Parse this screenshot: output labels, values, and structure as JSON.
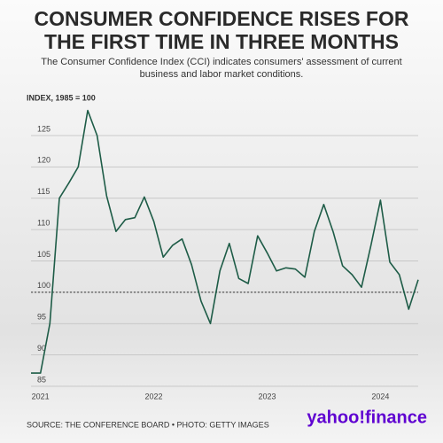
{
  "chart_data": {
    "type": "line",
    "title": "CONSUMER CONFIDENCE RISES FOR THE FIRST TIME IN THREE MONTHS",
    "subtitle": "The Consumer Confidence Index (CCI) indicates consumers' assessment of current business and labor market conditions.",
    "y_label": "INDEX, 1985 = 100",
    "source": "SOURCE: THE CONFERENCE BOARD • PHOTO: GETTY IMAGES",
    "brand": "yahoo!finance",
    "categories": [
      null,
      "2021",
      null,
      null,
      null,
      null,
      null,
      null,
      null,
      null,
      null,
      null,
      null,
      "2022",
      null,
      null,
      null,
      null,
      null,
      null,
      null,
      null,
      null,
      null,
      null,
      "2023",
      null,
      null,
      null,
      null,
      null,
      null,
      null,
      null,
      null,
      null,
      null,
      "2024",
      null,
      null,
      null,
      null
    ],
    "values": [
      87.1,
      87.1,
      95,
      115,
      117.4,
      120,
      129,
      125,
      115.4,
      109.7,
      111.6,
      111.9,
      115.2,
      111.3,
      105.6,
      107.5,
      108.5,
      104.4,
      98.6,
      95,
      103.4,
      107.8,
      102.2,
      101.4,
      109,
      106.3,
      103.4,
      103.9,
      103.7,
      102.4,
      109.7,
      114,
      109.6,
      104.2,
      102.8,
      100.8,
      107.5,
      114.7,
      104.8,
      102.8,
      97.3,
      102
    ],
    "color": "#1e5c47",
    "ylim": [
      83.5,
      130
    ],
    "yticks": [
      85,
      90,
      95,
      100,
      105,
      110,
      115,
      120,
      125
    ],
    "grid": true,
    "refline": 100
  }
}
